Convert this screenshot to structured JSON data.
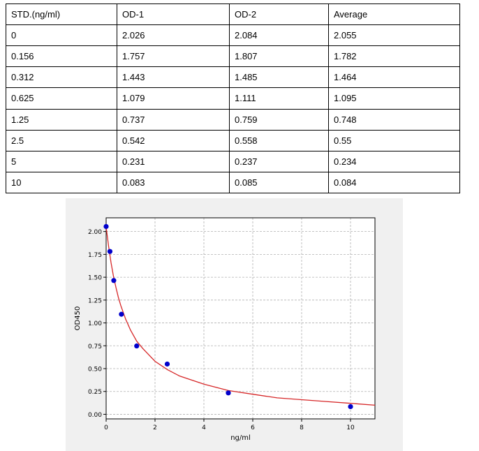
{
  "table": {
    "headers": [
      "STD.(ng/ml)",
      "OD-1",
      "OD-2",
      "Average"
    ],
    "rows": [
      [
        "0",
        "2.026",
        "2.084",
        "2.055"
      ],
      [
        "0.156",
        "1.757",
        "1.807",
        "1.782"
      ],
      [
        "0.312",
        "1.443",
        "1.485",
        "1.464"
      ],
      [
        "0.625",
        "1.079",
        "1.111",
        "1.095"
      ],
      [
        "1.25",
        "0.737",
        "0.759",
        "0.748"
      ],
      [
        "2.5",
        "0.542",
        "0.558",
        "0.55"
      ],
      [
        "5",
        "0.231",
        "0.237",
        "0.234"
      ],
      [
        "10",
        "0.083",
        "0.085",
        "0.084"
      ]
    ]
  },
  "chart_data": {
    "type": "scatter",
    "xlabel": "ng/ml",
    "ylabel": "OD450",
    "xlim": [
      0,
      11
    ],
    "ylim": [
      -0.05,
      2.15
    ],
    "x_ticks": [
      0,
      2,
      4,
      6,
      8,
      10
    ],
    "y_ticks": [
      0.0,
      0.25,
      0.5,
      0.75,
      1.0,
      1.25,
      1.5,
      1.75,
      2.0
    ],
    "x_tick_labels": [
      "0",
      "2",
      "4",
      "6",
      "8",
      "10"
    ],
    "y_tick_labels": [
      "0.00",
      "0.25",
      "0.50",
      "0.75",
      "1.00",
      "1.25",
      "1.50",
      "1.75",
      "2.00"
    ],
    "grid": true,
    "series": [
      {
        "kind": "points",
        "color": "#0000cc",
        "x": [
          0,
          0.156,
          0.312,
          0.625,
          1.25,
          2.5,
          5,
          10
        ],
        "y": [
          2.055,
          1.782,
          1.464,
          1.095,
          0.748,
          0.55,
          0.234,
          0.084
        ]
      },
      {
        "kind": "fit_curve",
        "color": "#d62728",
        "x": [
          0,
          0.1,
          0.2,
          0.3,
          0.4,
          0.5,
          0.6,
          0.8,
          1.0,
          1.25,
          1.5,
          2.0,
          2.5,
          3.0,
          4.0,
          5.0,
          6.0,
          7.0,
          8.0,
          9.0,
          10.0,
          11.0
        ],
        "y": [
          2.05,
          1.84,
          1.66,
          1.51,
          1.39,
          1.28,
          1.19,
          1.04,
          0.92,
          0.8,
          0.72,
          0.58,
          0.49,
          0.42,
          0.33,
          0.26,
          0.22,
          0.18,
          0.16,
          0.14,
          0.12,
          0.1
        ]
      }
    ]
  }
}
